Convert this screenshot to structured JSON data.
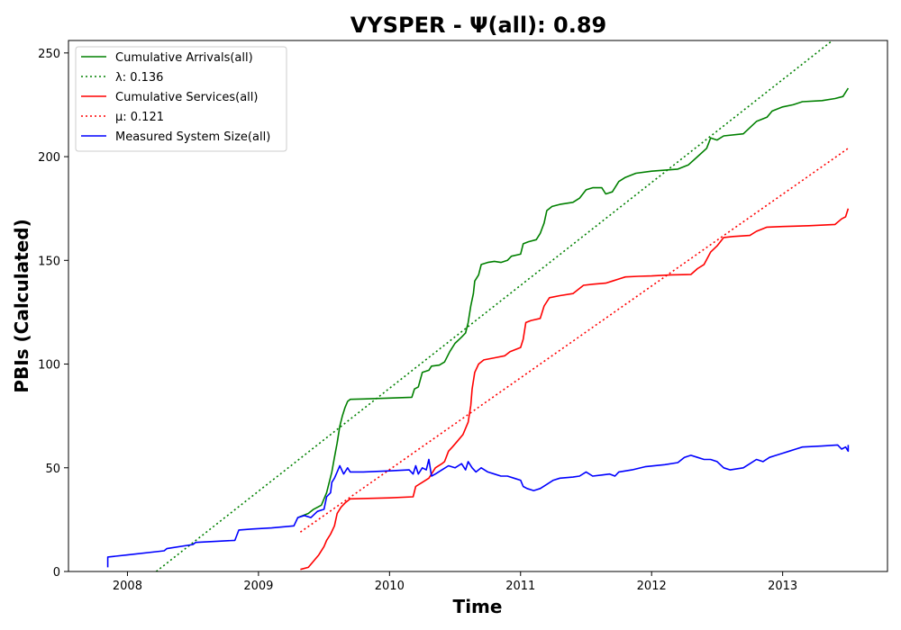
{
  "chart_data": {
    "type": "line",
    "title": "VYSPER -  Ψ(all): 0.89",
    "xlabel": "Time",
    "ylabel": "PBIs (Calculated)",
    "xlim": [
      2007.55,
      2013.8
    ],
    "ylim": [
      0,
      256
    ],
    "x_ticks": [
      2008,
      2009,
      2010,
      2011,
      2012,
      2013
    ],
    "y_ticks": [
      0,
      50,
      100,
      150,
      200,
      250
    ],
    "legend_position": "upper-left",
    "grid": false,
    "series": [
      {
        "name": "Cumulative Arrivals(all)",
        "color": "#008000",
        "style": "solid",
        "points": [
          [
            2009.3,
            26
          ],
          [
            2009.38,
            28
          ],
          [
            2009.42,
            30
          ],
          [
            2009.48,
            32
          ],
          [
            2009.52,
            38
          ],
          [
            2009.56,
            48
          ],
          [
            2009.58,
            55
          ],
          [
            2009.6,
            62
          ],
          [
            2009.62,
            70
          ],
          [
            2009.64,
            75
          ],
          [
            2009.66,
            79
          ],
          [
            2009.68,
            82
          ],
          [
            2009.7,
            83
          ],
          [
            2009.8,
            83.2
          ],
          [
            2010.0,
            83.6
          ],
          [
            2010.17,
            84
          ],
          [
            2010.19,
            88
          ],
          [
            2010.22,
            89
          ],
          [
            2010.25,
            96
          ],
          [
            2010.3,
            97
          ],
          [
            2010.32,
            99
          ],
          [
            2010.38,
            99.5
          ],
          [
            2010.42,
            101
          ],
          [
            2010.46,
            106
          ],
          [
            2010.5,
            110
          ],
          [
            2010.55,
            113
          ],
          [
            2010.58,
            115
          ],
          [
            2010.6,
            120
          ],
          [
            2010.62,
            128
          ],
          [
            2010.64,
            134
          ],
          [
            2010.65,
            140
          ],
          [
            2010.68,
            143
          ],
          [
            2010.7,
            148
          ],
          [
            2010.75,
            149
          ],
          [
            2010.8,
            149.5
          ],
          [
            2010.85,
            149
          ],
          [
            2010.9,
            150
          ],
          [
            2010.93,
            152
          ],
          [
            2011.0,
            153
          ],
          [
            2011.02,
            158
          ],
          [
            2011.06,
            159
          ],
          [
            2011.12,
            160
          ],
          [
            2011.15,
            163
          ],
          [
            2011.18,
            168
          ],
          [
            2011.2,
            174
          ],
          [
            2011.24,
            176
          ],
          [
            2011.3,
            177
          ],
          [
            2011.4,
            178
          ],
          [
            2011.45,
            180
          ],
          [
            2011.5,
            184
          ],
          [
            2011.55,
            185
          ],
          [
            2011.62,
            185
          ],
          [
            2011.65,
            182
          ],
          [
            2011.7,
            183
          ],
          [
            2011.75,
            188
          ],
          [
            2011.8,
            190
          ],
          [
            2011.88,
            192
          ],
          [
            2012.0,
            193
          ],
          [
            2012.2,
            194
          ],
          [
            2012.28,
            196
          ],
          [
            2012.35,
            200
          ],
          [
            2012.42,
            204
          ],
          [
            2012.45,
            209
          ],
          [
            2012.5,
            208
          ],
          [
            2012.55,
            210
          ],
          [
            2012.7,
            211
          ],
          [
            2012.75,
            214
          ],
          [
            2012.8,
            217
          ],
          [
            2012.88,
            219
          ],
          [
            2012.92,
            222
          ],
          [
            2013.0,
            224
          ],
          [
            2013.08,
            225
          ],
          [
            2013.15,
            226.5
          ],
          [
            2013.3,
            227
          ],
          [
            2013.4,
            228
          ],
          [
            2013.46,
            229
          ],
          [
            2013.5,
            233
          ]
        ]
      },
      {
        "name": "λ: 0.136",
        "color": "#008000",
        "style": "dotted",
        "points": [
          [
            2008.22,
            0
          ],
          [
            2013.4,
            257
          ]
        ]
      },
      {
        "name": "Cumulative Services(all)",
        "color": "#ff0000",
        "style": "solid",
        "points": [
          [
            2009.32,
            1
          ],
          [
            2009.38,
            2
          ],
          [
            2009.42,
            5
          ],
          [
            2009.46,
            8
          ],
          [
            2009.5,
            12
          ],
          [
            2009.52,
            15
          ],
          [
            2009.55,
            18
          ],
          [
            2009.58,
            22
          ],
          [
            2009.6,
            28
          ],
          [
            2009.63,
            31
          ],
          [
            2009.66,
            33
          ],
          [
            2009.7,
            35
          ],
          [
            2009.8,
            35.2
          ],
          [
            2010.0,
            35.5
          ],
          [
            2010.18,
            36
          ],
          [
            2010.2,
            41
          ],
          [
            2010.25,
            43
          ],
          [
            2010.3,
            45
          ],
          [
            2010.35,
            50
          ],
          [
            2010.4,
            52
          ],
          [
            2010.42,
            53
          ],
          [
            2010.45,
            58
          ],
          [
            2010.48,
            60
          ],
          [
            2010.52,
            63
          ],
          [
            2010.56,
            66
          ],
          [
            2010.6,
            72
          ],
          [
            2010.62,
            80
          ],
          [
            2010.63,
            88
          ],
          [
            2010.65,
            96
          ],
          [
            2010.68,
            100
          ],
          [
            2010.72,
            102
          ],
          [
            2010.8,
            103
          ],
          [
            2010.88,
            104
          ],
          [
            2010.92,
            106
          ],
          [
            2011.0,
            108
          ],
          [
            2011.02,
            112
          ],
          [
            2011.04,
            120
          ],
          [
            2011.08,
            121
          ],
          [
            2011.15,
            122
          ],
          [
            2011.18,
            128
          ],
          [
            2011.22,
            132
          ],
          [
            2011.3,
            133
          ],
          [
            2011.4,
            134
          ],
          [
            2011.48,
            138
          ],
          [
            2011.55,
            138.5
          ],
          [
            2011.65,
            139
          ],
          [
            2011.7,
            140
          ],
          [
            2011.75,
            141
          ],
          [
            2011.8,
            142
          ],
          [
            2011.9,
            142.3
          ],
          [
            2012.0,
            142.5
          ],
          [
            2012.15,
            143
          ],
          [
            2012.3,
            143.2
          ],
          [
            2012.35,
            146
          ],
          [
            2012.4,
            148
          ],
          [
            2012.45,
            154
          ],
          [
            2012.5,
            157
          ],
          [
            2012.55,
            161
          ],
          [
            2012.62,
            161.5
          ],
          [
            2012.75,
            162
          ],
          [
            2012.8,
            164
          ],
          [
            2012.88,
            166
          ],
          [
            2013.0,
            166.3
          ],
          [
            2013.2,
            166.7
          ],
          [
            2013.4,
            167.3
          ],
          [
            2013.45,
            170
          ],
          [
            2013.48,
            171
          ],
          [
            2013.5,
            175
          ]
        ]
      },
      {
        "name": "μ: 0.121",
        "color": "#ff0000",
        "style": "dotted",
        "points": [
          [
            2009.32,
            19
          ],
          [
            2013.5,
            204
          ]
        ]
      },
      {
        "name": "Measured System Size(all)",
        "color": "#0000ff",
        "style": "solid",
        "points": [
          [
            2007.85,
            2
          ],
          [
            2007.85,
            7
          ],
          [
            2008.0,
            8
          ],
          [
            2008.28,
            10
          ],
          [
            2008.3,
            11
          ],
          [
            2008.5,
            13
          ],
          [
            2008.52,
            14
          ],
          [
            2008.82,
            15
          ],
          [
            2008.85,
            20
          ],
          [
            2008.95,
            20.5
          ],
          [
            2009.1,
            21
          ],
          [
            2009.27,
            22
          ],
          [
            2009.3,
            26
          ],
          [
            2009.35,
            27
          ],
          [
            2009.4,
            26
          ],
          [
            2009.45,
            29
          ],
          [
            2009.5,
            30
          ],
          [
            2009.52,
            36
          ],
          [
            2009.55,
            38
          ],
          [
            2009.56,
            43
          ],
          [
            2009.58,
            45
          ],
          [
            2009.6,
            48
          ],
          [
            2009.62,
            51
          ],
          [
            2009.65,
            47
          ],
          [
            2009.68,
            50
          ],
          [
            2009.7,
            48
          ],
          [
            2009.8,
            48
          ],
          [
            2010.0,
            48.5
          ],
          [
            2010.15,
            49
          ],
          [
            2010.18,
            47
          ],
          [
            2010.2,
            51
          ],
          [
            2010.22,
            47
          ],
          [
            2010.25,
            50
          ],
          [
            2010.28,
            49
          ],
          [
            2010.3,
            54
          ],
          [
            2010.32,
            46
          ],
          [
            2010.35,
            47
          ],
          [
            2010.4,
            49
          ],
          [
            2010.45,
            51
          ],
          [
            2010.5,
            50
          ],
          [
            2010.55,
            52
          ],
          [
            2010.58,
            49
          ],
          [
            2010.6,
            53
          ],
          [
            2010.63,
            50
          ],
          [
            2010.66,
            48
          ],
          [
            2010.7,
            50
          ],
          [
            2010.75,
            48
          ],
          [
            2010.8,
            47
          ],
          [
            2010.85,
            46
          ],
          [
            2010.9,
            46
          ],
          [
            2010.95,
            45
          ],
          [
            2011.0,
            44
          ],
          [
            2011.02,
            41
          ],
          [
            2011.05,
            40
          ],
          [
            2011.1,
            39
          ],
          [
            2011.15,
            40
          ],
          [
            2011.2,
            42
          ],
          [
            2011.25,
            44
          ],
          [
            2011.3,
            45
          ],
          [
            2011.4,
            45.5
          ],
          [
            2011.45,
            46
          ],
          [
            2011.5,
            48
          ],
          [
            2011.55,
            46
          ],
          [
            2011.62,
            46.5
          ],
          [
            2011.68,
            47
          ],
          [
            2011.72,
            46
          ],
          [
            2011.75,
            48
          ],
          [
            2011.85,
            49
          ],
          [
            2011.95,
            50.5
          ],
          [
            2012.1,
            51.5
          ],
          [
            2012.2,
            52.5
          ],
          [
            2012.25,
            55
          ],
          [
            2012.3,
            56
          ],
          [
            2012.35,
            55
          ],
          [
            2012.4,
            54
          ],
          [
            2012.45,
            54
          ],
          [
            2012.5,
            53
          ],
          [
            2012.55,
            50
          ],
          [
            2012.6,
            49
          ],
          [
            2012.7,
            50
          ],
          [
            2012.75,
            52
          ],
          [
            2012.8,
            54
          ],
          [
            2012.85,
            53
          ],
          [
            2012.9,
            55
          ],
          [
            2012.95,
            56
          ],
          [
            2013.0,
            57
          ],
          [
            2013.05,
            58
          ],
          [
            2013.1,
            59
          ],
          [
            2013.15,
            60
          ],
          [
            2013.3,
            60.5
          ],
          [
            2013.42,
            61
          ],
          [
            2013.45,
            59
          ],
          [
            2013.48,
            60
          ],
          [
            2013.5,
            58
          ],
          [
            2013.5,
            61
          ]
        ]
      }
    ]
  }
}
